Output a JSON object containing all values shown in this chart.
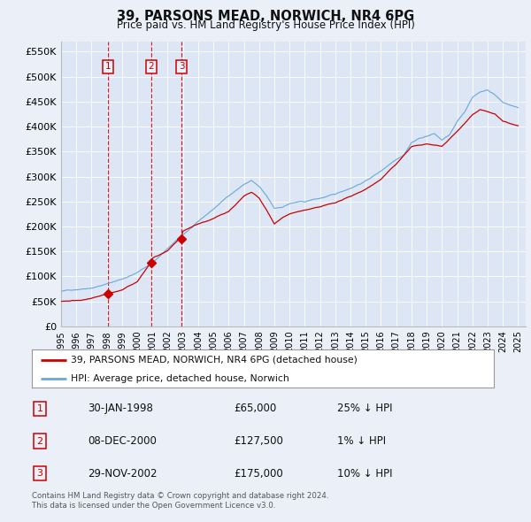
{
  "title": "39, PARSONS MEAD, NORWICH, NR4 6PG",
  "subtitle": "Price paid vs. HM Land Registry's House Price Index (HPI)",
  "ylabel_ticks": [
    "£0",
    "£50K",
    "£100K",
    "£150K",
    "£200K",
    "£250K",
    "£300K",
    "£350K",
    "£400K",
    "£450K",
    "£500K",
    "£550K"
  ],
  "ytick_values": [
    0,
    50000,
    100000,
    150000,
    200000,
    250000,
    300000,
    350000,
    400000,
    450000,
    500000,
    550000
  ],
  "ylim": [
    0,
    570000
  ],
  "xlim_start": 1995.0,
  "xlim_end": 2025.5,
  "sale_dates": [
    1998.08,
    2000.92,
    2002.92
  ],
  "sale_prices": [
    65000,
    127500,
    175000
  ],
  "sale_labels": [
    "1",
    "2",
    "3"
  ],
  "sale_info": [
    {
      "num": "1",
      "date": "30-JAN-1998",
      "price": "£65,000",
      "hpi": "25% ↓ HPI"
    },
    {
      "num": "2",
      "date": "08-DEC-2000",
      "price": "£127,500",
      "hpi": "1% ↓ HPI"
    },
    {
      "num": "3",
      "date": "29-NOV-2002",
      "price": "£175,000",
      "hpi": "10% ↓ HPI"
    }
  ],
  "legend_line1": "39, PARSONS MEAD, NORWICH, NR4 6PG (detached house)",
  "legend_line2": "HPI: Average price, detached house, Norwich",
  "footer": "Contains HM Land Registry data © Crown copyright and database right 2024.\nThis data is licensed under the Open Government Licence v3.0.",
  "background_color": "#eaeff8",
  "plot_bg_color": "#dce6f5",
  "grid_color": "#ffffff",
  "hpi_line_color": "#6aa8d8",
  "price_line_color": "#cc0000",
  "vline_color": "#cc0000",
  "box_color": "#cc0000",
  "xticks": [
    1995,
    1996,
    1997,
    1998,
    1999,
    2000,
    2001,
    2002,
    2003,
    2004,
    2005,
    2006,
    2007,
    2008,
    2009,
    2010,
    2011,
    2012,
    2013,
    2014,
    2015,
    2016,
    2017,
    2018,
    2019,
    2020,
    2021,
    2022,
    2023,
    2024,
    2025
  ],
  "hpi_nodes_t": [
    1995,
    1996,
    1997,
    1998,
    1999,
    2000,
    2001,
    2002,
    2003,
    2004,
    2005,
    2006,
    2007,
    2007.5,
    2008,
    2008.5,
    2009,
    2009.5,
    2010,
    2010.5,
    2011,
    2011.5,
    2012,
    2013,
    2014,
    2015,
    2016,
    2017,
    2017.5,
    2018,
    2018.5,
    2019,
    2019.5,
    2020,
    2020.5,
    2021,
    2021.5,
    2022,
    2022.5,
    2023,
    2023.5,
    2024,
    2024.5,
    2025
  ],
  "hpi_nodes_v": [
    70000,
    74000,
    79000,
    87000,
    97000,
    110000,
    130000,
    158000,
    185000,
    210000,
    235000,
    262000,
    285000,
    293000,
    280000,
    260000,
    235000,
    238000,
    245000,
    248000,
    248000,
    252000,
    255000,
    262000,
    275000,
    290000,
    310000,
    335000,
    345000,
    370000,
    378000,
    383000,
    388000,
    375000,
    385000,
    410000,
    430000,
    460000,
    470000,
    475000,
    465000,
    450000,
    445000,
    440000
  ],
  "price_nodes_t": [
    1995,
    1996,
    1997,
    1998.08,
    1999,
    2000,
    2000.92,
    2001,
    2002,
    2002.92,
    2003,
    2004,
    2005,
    2006,
    2007,
    2007.5,
    2008,
    2008.5,
    2009,
    2009.5,
    2010,
    2011,
    2012,
    2013,
    2014,
    2015,
    2016,
    2017,
    2018,
    2019,
    2020,
    2021,
    2022,
    2022.5,
    2023,
    2023.5,
    2024,
    2024.5,
    2025
  ],
  "price_nodes_v": [
    50000,
    52000,
    56000,
    65000,
    72000,
    88000,
    127500,
    135000,
    148000,
    175000,
    185000,
    200000,
    210000,
    225000,
    255000,
    262000,
    250000,
    225000,
    197000,
    210000,
    218000,
    225000,
    230000,
    238000,
    250000,
    265000,
    285000,
    315000,
    350000,
    355000,
    350000,
    380000,
    415000,
    425000,
    420000,
    415000,
    400000,
    395000,
    390000
  ]
}
